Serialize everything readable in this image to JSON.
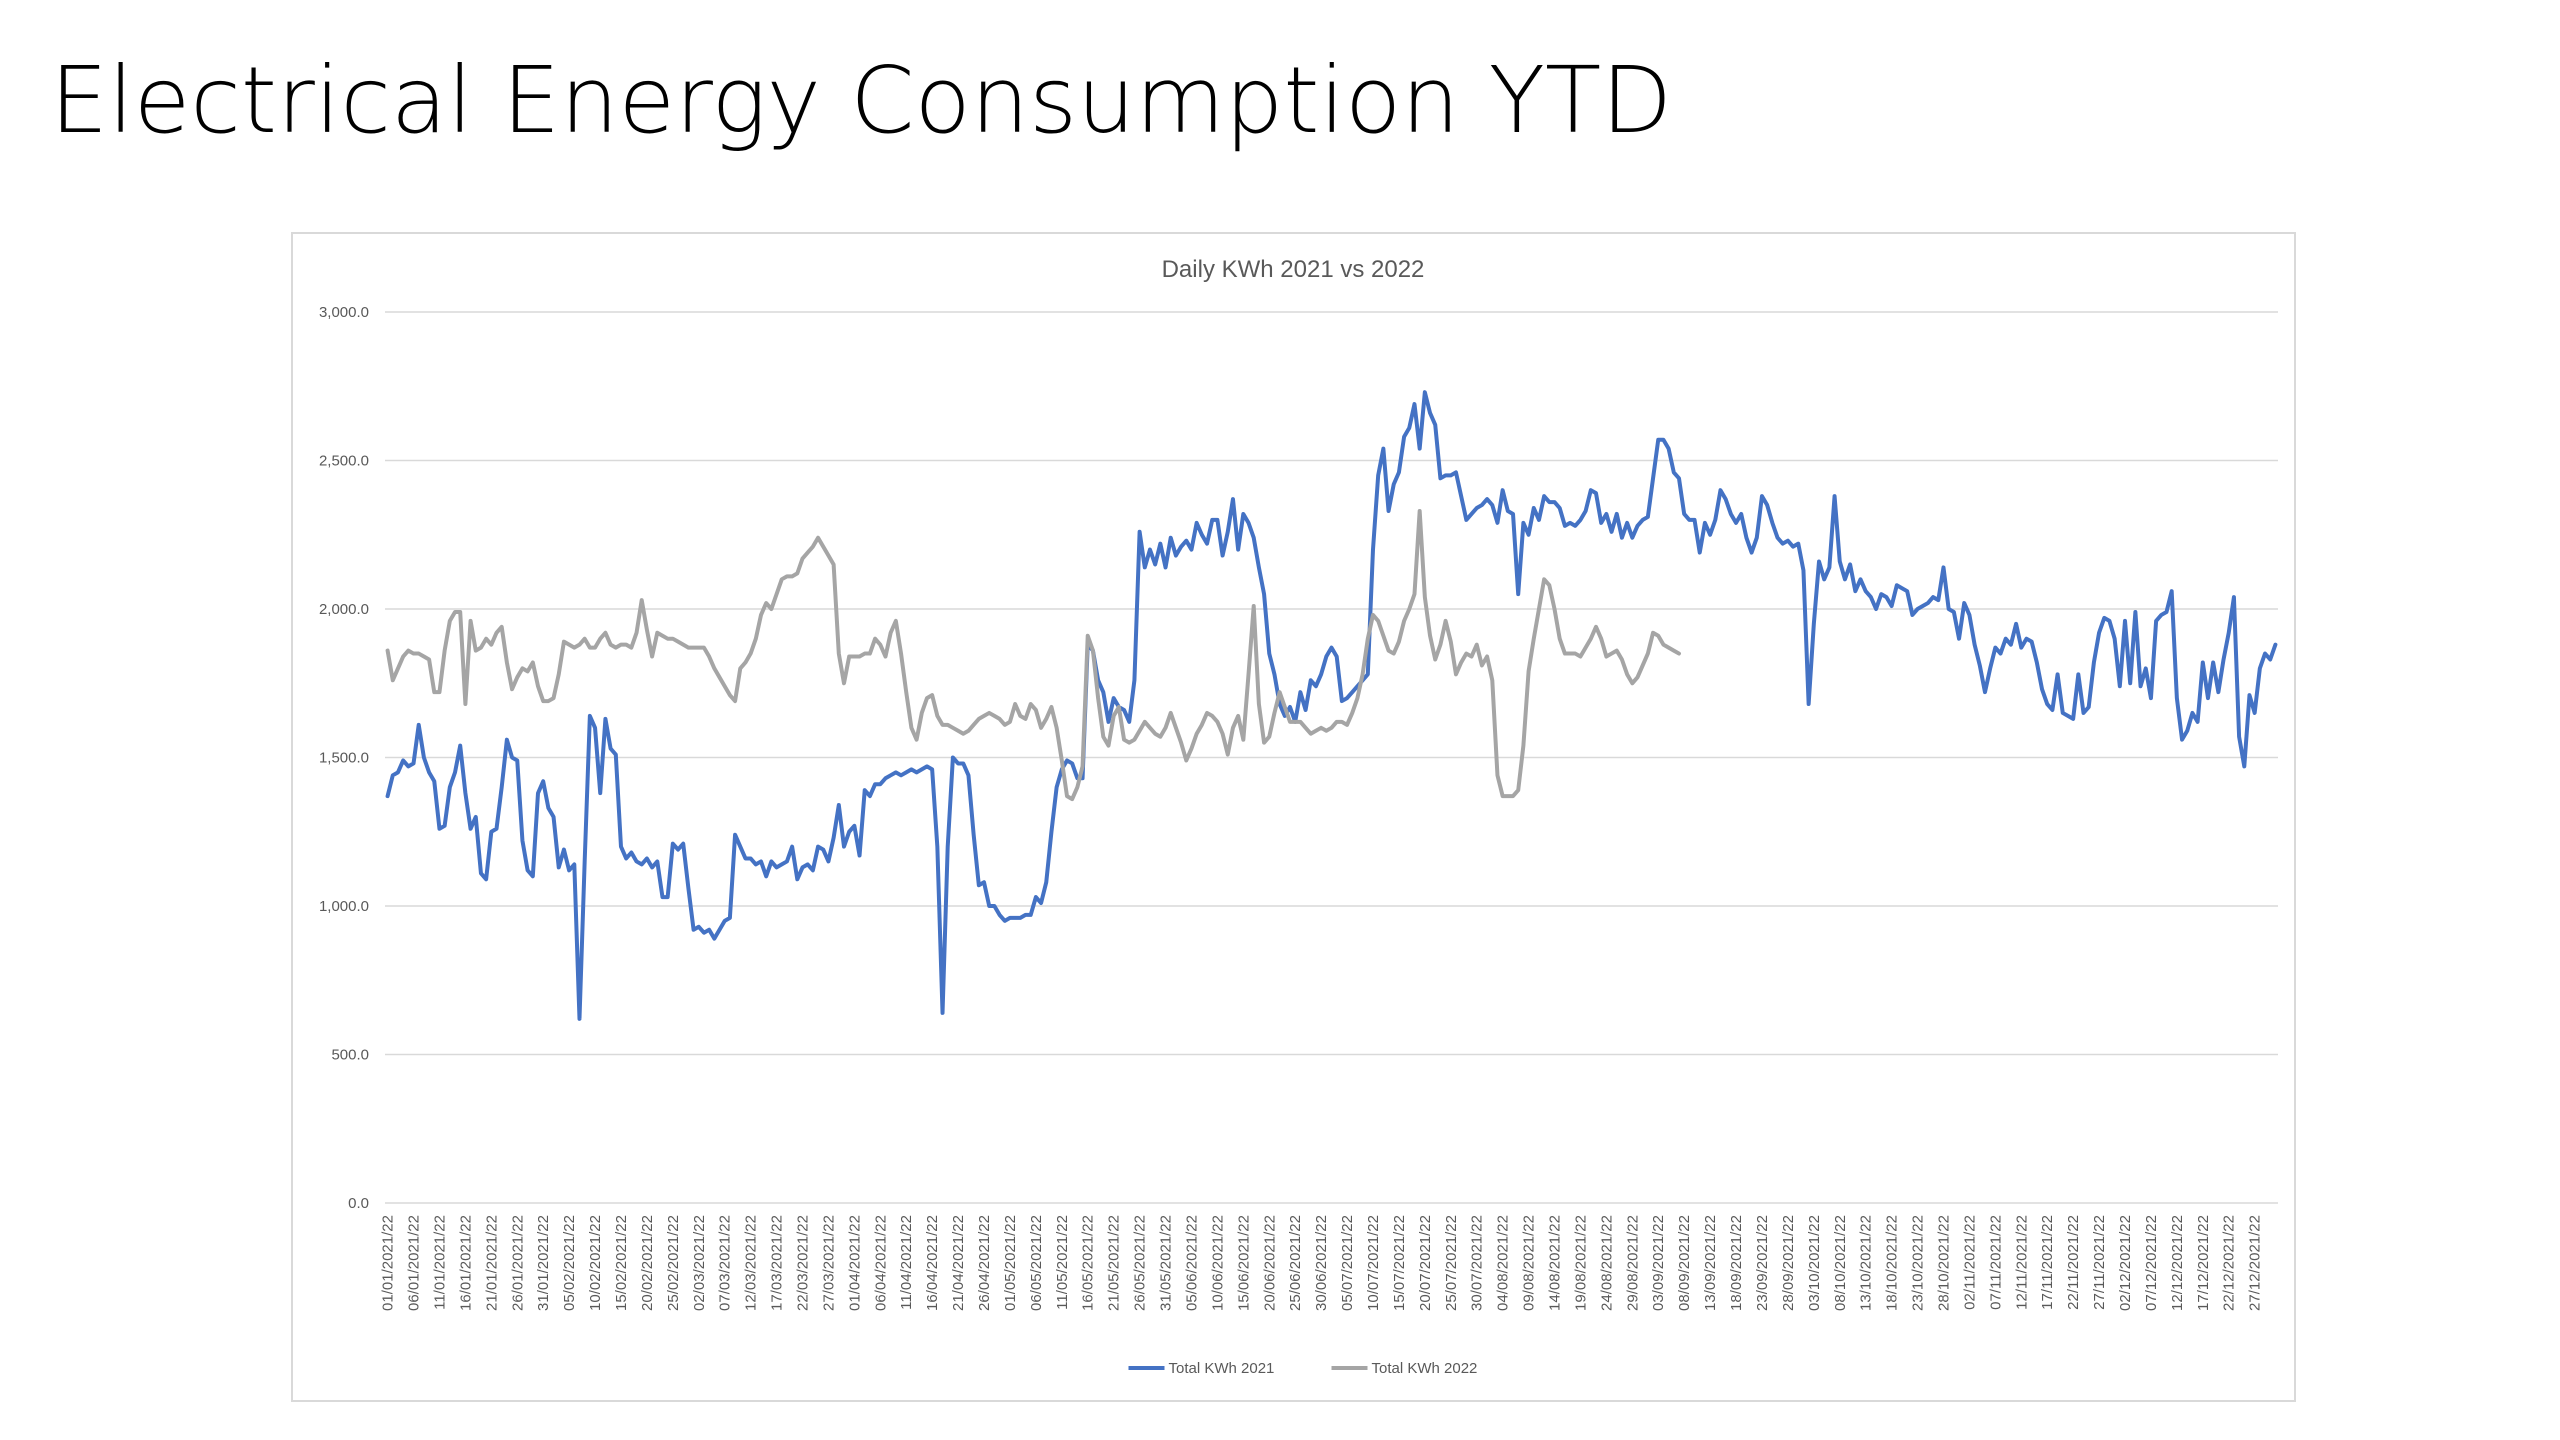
{
  "title": "Electrical Energy Consumption YTD",
  "chart_data": {
    "type": "line",
    "title": "Daily KWh 2021 vs 2022",
    "categories": [
      "01/01/2021/22",
      null,
      null,
      null,
      null,
      "06/01/2021/22",
      null,
      null,
      null,
      null,
      "11/01/2021/22",
      null,
      null,
      null,
      null,
      "16/01/2021/22",
      null,
      null,
      null,
      null,
      "21/01/2021/22",
      null,
      null,
      null,
      null,
      "26/01/2021/22",
      null,
      null,
      null,
      null,
      "31/01/2021/22",
      null,
      null,
      null,
      null,
      "05/02/2021/22",
      null,
      null,
      null,
      null,
      "10/02/2021/22",
      null,
      null,
      null,
      null,
      "15/02/2021/22",
      null,
      null,
      null,
      null,
      "20/02/2021/22",
      null,
      null,
      null,
      null,
      "25/02/2021/22",
      null,
      null,
      null,
      null,
      "02/03/2021/22",
      null,
      null,
      null,
      null,
      "07/03/2021/22",
      null,
      null,
      null,
      null,
      "12/03/2021/22",
      null,
      null,
      null,
      null,
      "17/03/2021/22",
      null,
      null,
      null,
      null,
      "22/03/2021/22",
      null,
      null,
      null,
      null,
      "27/03/2021/22",
      null,
      null,
      null,
      null,
      "01/04/2021/22",
      null,
      null,
      null,
      null,
      "06/04/2021/22",
      null,
      null,
      null,
      null,
      "11/04/2021/22",
      null,
      null,
      null,
      null,
      "16/04/2021/22",
      null,
      null,
      null,
      null,
      "21/04/2021/22",
      null,
      null,
      null,
      null,
      "26/04/2021/22",
      null,
      null,
      null,
      null,
      "01/05/2021/22",
      null,
      null,
      null,
      null,
      "06/05/2021/22",
      null,
      null,
      null,
      null,
      "11/05/2021/22",
      null,
      null,
      null,
      null,
      "16/05/2021/22",
      null,
      null,
      null,
      null,
      "21/05/2021/22",
      null,
      null,
      null,
      null,
      "26/05/2021/22",
      null,
      null,
      null,
      null,
      "31/05/2021/22",
      null,
      null,
      null,
      null,
      "05/06/2021/22",
      null,
      null,
      null,
      null,
      "10/06/2021/22",
      null,
      null,
      null,
      null,
      "15/06/2021/22",
      null,
      null,
      null,
      null,
      "20/06/2021/22",
      null,
      null,
      null,
      null,
      "25/06/2021/22",
      null,
      null,
      null,
      null,
      "30/06/2021/22",
      null,
      null,
      null,
      null,
      "05/07/2021/22",
      null,
      null,
      null,
      null,
      "10/07/2021/22",
      null,
      null,
      null,
      null,
      "15/07/2021/22",
      null,
      null,
      null,
      null,
      "20/07/2021/22",
      null,
      null,
      null,
      null,
      "25/07/2021/22",
      null,
      null,
      null,
      null,
      "30/07/2021/22",
      null,
      null,
      null,
      null,
      "04/08/2021/22",
      null,
      null,
      null,
      null,
      "09/08/2021/22",
      null,
      null,
      null,
      null,
      "14/08/2021/22",
      null,
      null,
      null,
      null,
      "19/08/2021/22",
      null,
      null,
      null,
      null,
      "24/08/2021/22",
      null,
      null,
      null,
      null,
      "29/08/2021/22",
      null,
      null,
      null,
      null,
      "03/09/2021/22",
      null,
      null,
      null,
      null,
      "08/09/2021/22",
      null,
      null,
      null,
      null,
      "13/09/2021/22",
      null,
      null,
      null,
      null,
      "18/09/2021/22",
      null,
      null,
      null,
      null,
      "23/09/2021/22",
      null,
      null,
      null,
      null,
      "28/09/2021/22",
      null,
      null,
      null,
      null,
      "03/10/2021/22",
      null,
      null,
      null,
      null,
      "08/10/2021/22",
      null,
      null,
      null,
      null,
      "13/10/2021/22",
      null,
      null,
      null,
      null,
      "18/10/2021/22",
      null,
      null,
      null,
      null,
      "23/10/2021/22",
      null,
      null,
      null,
      null,
      "28/10/2021/22",
      null,
      null,
      null,
      null,
      "02/11/2021/22",
      null,
      null,
      null,
      null,
      "07/11/2021/22",
      null,
      null,
      null,
      null,
      "12/11/2021/22",
      null,
      null,
      null,
      null,
      "17/11/2021/22",
      null,
      null,
      null,
      null,
      "22/11/2021/22",
      null,
      null,
      null,
      null,
      "27/11/2021/22",
      null,
      null,
      null,
      null,
      "02/12/2021/22",
      null,
      null,
      null,
      null,
      "07/12/2021/22",
      null,
      null,
      null,
      null,
      "12/12/2021/22",
      null,
      null,
      null,
      null,
      "17/12/2021/22",
      null,
      null,
      null,
      null,
      "22/12/2021/22",
      null,
      null,
      null,
      null,
      "27/12/2021/22",
      null,
      null,
      null,
      null
    ],
    "series": [
      {
        "name": "Total KWh 2021",
        "color": "#4472c4",
        "values": [
          1370,
          1440,
          1450,
          1490,
          1470,
          1480,
          1610,
          1500,
          1450,
          1420,
          1260,
          1270,
          1400,
          1450,
          1540,
          1380,
          1260,
          1300,
          1110,
          1090,
          1250,
          1260,
          1400,
          1560,
          1500,
          1490,
          1220,
          1120,
          1100,
          1380,
          1420,
          1330,
          1300,
          1130,
          1190,
          1120,
          1140,
          620,
          1150,
          1640,
          1600,
          1380,
          1630,
          1530,
          1510,
          1200,
          1160,
          1180,
          1150,
          1140,
          1160,
          1130,
          1150,
          1030,
          1030,
          1210,
          1190,
          1210,
          1060,
          920,
          930,
          910,
          920,
          890,
          920,
          950,
          960,
          1240,
          1200,
          1160,
          1160,
          1140,
          1150,
          1100,
          1150,
          1130,
          1140,
          1150,
          1200,
          1090,
          1130,
          1140,
          1120,
          1200,
          1190,
          1150,
          1230,
          1340,
          1200,
          1250,
          1270,
          1170,
          1390,
          1370,
          1410,
          1410,
          1430,
          1440,
          1450,
          1440,
          1450,
          1460,
          1450,
          1460,
          1470,
          1460,
          1200,
          640,
          1200,
          1500,
          1480,
          1480,
          1440,
          1240,
          1070,
          1080,
          1000,
          1000,
          970,
          950,
          960,
          960,
          960,
          970,
          970,
          1030,
          1010,
          1080,
          1250,
          1400,
          1460,
          1490,
          1480,
          1430,
          1430,
          1880,
          1860,
          1760,
          1720,
          1620,
          1700,
          1670,
          1660,
          1620,
          1760,
          2260,
          2140,
          2200,
          2150,
          2220,
          2140,
          2240,
          2180,
          2210,
          2230,
          2200,
          2290,
          2250,
          2220,
          2300,
          2300,
          2180,
          2260,
          2370,
          2200,
          2320,
          2290,
          2240,
          2140,
          2050,
          1850,
          1780,
          1680,
          1640,
          1670,
          1620,
          1720,
          1660,
          1760,
          1740,
          1780,
          1840,
          1870,
          1840,
          1690,
          1700,
          1720,
          1740,
          1760,
          1780,
          2200,
          2450,
          2540,
          2330,
          2420,
          2460,
          2580,
          2610,
          2690,
          2540,
          2730,
          2660,
          2620,
          2440,
          2450,
          2450,
          2460,
          2380,
          2300,
          2320,
          2340,
          2350,
          2370,
          2350,
          2290,
          2400,
          2330,
          2320,
          2050,
          2290,
          2250,
          2340,
          2300,
          2380,
          2360,
          2360,
          2340,
          2280,
          2290,
          2280,
          2300,
          2330,
          2400,
          2390,
          2290,
          2320,
          2260,
          2320,
          2240,
          2290,
          2240,
          2280,
          2300,
          2310,
          2440,
          2570,
          2570,
          2540,
          2460,
          2440,
          2320,
          2300,
          2300,
          2190,
          2290,
          2250,
          2300,
          2400,
          2370,
          2320,
          2290,
          2320,
          2240,
          2190,
          2240,
          2380,
          2350,
          2290,
          2240,
          2220,
          2230,
          2210,
          2220,
          2130,
          1680,
          1950,
          2160,
          2100,
          2140,
          2380,
          2160,
          2100,
          2150,
          2060,
          2100,
          2060,
          2040,
          2000,
          2050,
          2040,
          2010,
          2080,
          2070,
          2060,
          1980,
          2000,
          2010,
          2020,
          2040,
          2030,
          2140,
          2000,
          1990,
          1900,
          2020,
          1980,
          1880,
          1810,
          1720,
          1800,
          1870,
          1850,
          1900,
          1880,
          1950,
          1870,
          1900,
          1890,
          1820,
          1730,
          1680,
          1660,
          1780,
          1650,
          1640,
          1630,
          1780,
          1650,
          1670,
          1820,
          1920,
          1970,
          1960,
          1900,
          1740,
          1960,
          1750,
          1990,
          1740,
          1800,
          1700,
          1960,
          1980,
          1990,
          2060,
          1700,
          1560,
          1590,
          1650,
          1620,
          1820,
          1700,
          1820,
          1720,
          1830,
          1920,
          2040,
          1570,
          1470,
          1710,
          1650,
          1800,
          1850,
          1830,
          1880
        ]
      },
      {
        "name": "Total KWh 2022",
        "color": "#a5a5a5",
        "values": [
          1860,
          1760,
          1800,
          1840,
          1860,
          1850,
          1850,
          1840,
          1830,
          1720,
          1720,
          1860,
          1960,
          1990,
          1990,
          1680,
          1960,
          1860,
          1870,
          1900,
          1880,
          1920,
          1940,
          1820,
          1730,
          1770,
          1800,
          1790,
          1820,
          1740,
          1690,
          1690,
          1700,
          1780,
          1890,
          1880,
          1870,
          1880,
          1900,
          1870,
          1870,
          1900,
          1920,
          1880,
          1870,
          1880,
          1880,
          1870,
          1920,
          2030,
          1930,
          1840,
          1920,
          1910,
          1900,
          1900,
          1890,
          1880,
          1870,
          1870,
          1870,
          1870,
          1840,
          1800,
          1770,
          1740,
          1710,
          1690,
          1800,
          1820,
          1850,
          1900,
          1980,
          2020,
          2000,
          2050,
          2100,
          2110,
          2110,
          2120,
          2170,
          2190,
          2210,
          2240,
          2210,
          2180,
          2150,
          1850,
          1750,
          1840,
          1840,
          1840,
          1850,
          1850,
          1900,
          1880,
          1840,
          1920,
          1960,
          1850,
          1720,
          1600,
          1560,
          1650,
          1700,
          1710,
          1640,
          1610,
          1610,
          1600,
          1590,
          1580,
          1590,
          1610,
          1630,
          1640,
          1650,
          1640,
          1630,
          1610,
          1620,
          1680,
          1640,
          1630,
          1680,
          1660,
          1600,
          1630,
          1670,
          1600,
          1490,
          1370,
          1360,
          1400,
          1470,
          1910,
          1860,
          1700,
          1570,
          1540,
          1640,
          1670,
          1560,
          1550,
          1560,
          1590,
          1620,
          1600,
          1580,
          1570,
          1600,
          1650,
          1600,
          1550,
          1490,
          1530,
          1580,
          1610,
          1650,
          1640,
          1620,
          1580,
          1510,
          1600,
          1640,
          1560,
          1780,
          2010,
          1680,
          1550,
          1570,
          1650,
          1720,
          1670,
          1620,
          1620,
          1620,
          1600,
          1580,
          1590,
          1600,
          1590,
          1600,
          1620,
          1620,
          1610,
          1650,
          1700,
          1780,
          1900,
          1980,
          1960,
          1910,
          1860,
          1850,
          1890,
          1960,
          2000,
          2050,
          2330,
          2040,
          1910,
          1830,
          1880,
          1960,
          1890,
          1780,
          1820,
          1850,
          1840,
          1880,
          1810,
          1840,
          1760,
          1440,
          1370,
          1370,
          1370,
          1390,
          1540,
          1790,
          1900,
          2000,
          2100,
          2080,
          2000,
          1900,
          1850,
          1850,
          1850,
          1840,
          1870,
          1900,
          1940,
          1900,
          1840,
          1850,
          1860,
          1830,
          1780,
          1750,
          1770,
          1810,
          1850,
          1920,
          1910,
          1880,
          1870,
          1860,
          1850,
          null,
          null,
          null,
          null,
          null,
          null,
          null,
          null,
          null,
          null,
          null,
          null,
          null,
          null,
          null,
          null,
          null,
          null,
          null,
          null,
          null,
          null,
          null,
          null,
          null,
          null,
          null,
          null,
          null,
          null,
          null,
          null,
          null,
          null,
          null,
          null,
          null,
          null,
          null,
          null,
          null,
          null,
          null,
          null,
          null,
          null,
          null,
          null,
          null,
          null,
          null,
          null,
          null,
          null,
          null,
          null,
          null,
          null,
          null,
          null,
          null,
          null,
          null,
          null,
          null,
          null,
          null,
          null,
          null,
          null,
          null,
          null,
          null,
          null,
          null,
          null,
          null,
          null,
          null,
          null,
          null,
          null,
          null,
          null,
          null,
          null,
          null,
          null,
          null,
          null,
          null,
          null,
          null,
          null,
          null,
          null,
          null,
          null,
          null,
          null,
          null,
          null,
          null,
          null,
          null,
          null,
          null,
          null,
          null,
          null,
          null,
          null,
          null,
          null,
          null
        ]
      }
    ],
    "ylim": [
      0,
      3000
    ],
    "yticks": [
      {
        "value": 0,
        "label": "0.0"
      },
      {
        "value": 500,
        "label": "500.0"
      },
      {
        "value": 1000,
        "label": "1,000.0"
      },
      {
        "value": 1500,
        "label": "1,500.0"
      },
      {
        "value": 2000,
        "label": "2,000.0"
      },
      {
        "value": 2500,
        "label": "2,500.0"
      },
      {
        "value": 3000,
        "label": "3,000.0"
      }
    ],
    "grid": true,
    "legend": "bottom"
  }
}
